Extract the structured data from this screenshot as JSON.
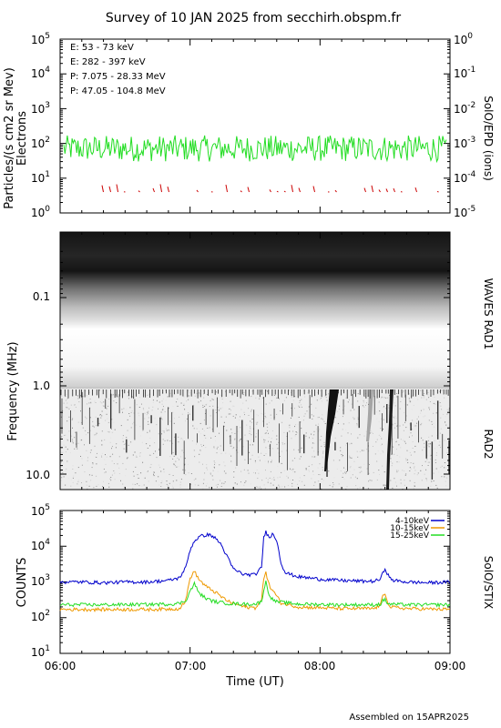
{
  "title": "Survey of 10 JAN 2025 from secchirh.obspm.fr",
  "footer": "Assembled on 15APR2025",
  "colors": {
    "green": "#22dd22",
    "red": "#cc0000",
    "black": "#000000",
    "blue": "#0000cc",
    "orange": "#ee9900"
  },
  "chart_data": [
    {
      "type": "line",
      "panel": "particles",
      "ylabel": "Particles/(s cm2 sr Mev)",
      "ylabel2": "Electrons",
      "right_label": "SolO/EPD (ions)",
      "yscale": "log",
      "ylim": [
        1,
        100000
      ],
      "yticks": [
        "10",
        "10",
        "10",
        "10",
        "10",
        "10"
      ],
      "ytick_exp": [
        "0",
        "1",
        "2",
        "3",
        "4",
        "5"
      ],
      "y2lim": [
        1e-05,
        1
      ],
      "y2ticks": [
        "10",
        "10",
        "10",
        "10",
        "10",
        "10"
      ],
      "y2tick_exp": [
        "-5",
        "-4",
        "-3",
        "-2",
        "-1",
        "0"
      ],
      "xlim": [
        "06:00",
        "09:00"
      ],
      "legend_items": [
        {
          "label": "E: 53 - 73 keV",
          "color": "#22dd22"
        },
        {
          "label": "E: 282 - 397 keV",
          "color": "#cc0000"
        },
        {
          "label": "P: 7.075 - 28.33 MeV",
          "color": "#000000"
        },
        {
          "label": "P: 47.05 - 104.8 MeV",
          "color": "#0000cc"
        }
      ],
      "series": [
        {
          "name": "E: 53 - 73 keV",
          "color": "#22dd22",
          "typical": 70,
          "range": [
            30,
            170
          ]
        },
        {
          "name": "E: 282 - 397 keV",
          "color": "#cc0000",
          "typical": 5,
          "range": [
            4,
            7
          ],
          "sparse": true
        }
      ]
    },
    {
      "type": "heatmap",
      "panel": "radio",
      "ylabel": "Frequency (MHz)",
      "right_labels": [
        "WAVES RAD1",
        "RAD2"
      ],
      "yscale": "log",
      "yreversed": true,
      "ylim": [
        0.02,
        16
      ],
      "yticks": [
        "0.1",
        "1.0",
        "10.0"
      ],
      "xlim": [
        "06:00",
        "09:00"
      ],
      "features": [
        {
          "kind": "type III burst",
          "time": "08:05",
          "freq_range": [
            1.0,
            16
          ]
        },
        {
          "kind": "type III burst",
          "time": "08:30",
          "freq_range": [
            1.0,
            16
          ]
        }
      ]
    },
    {
      "type": "line",
      "panel": "stix",
      "ylabel": "COUNTS",
      "right_label": "SolO/STIX",
      "yscale": "log",
      "ylim": [
        10,
        100000
      ],
      "yticks": [
        "10",
        "10",
        "10",
        "10",
        "10"
      ],
      "ytick_exp": [
        "1",
        "2",
        "3",
        "4",
        "5"
      ],
      "xlabel": "Time (UT)",
      "xticks": [
        "06:00",
        "07:00",
        "08:00",
        "09:00"
      ],
      "xlim_minutes": [
        0,
        180
      ],
      "legend_items": [
        {
          "label": "4-10keV",
          "color": "#0000cc"
        },
        {
          "label": "10-15keV",
          "color": "#ee9900"
        },
        {
          "label": "15-25keV",
          "color": "#22dd22"
        }
      ],
      "series": [
        {
          "name": "4-10keV",
          "color": "#0000cc",
          "x": [
            0,
            10,
            20,
            30,
            40,
            50,
            55,
            58,
            60,
            62,
            64,
            66,
            68,
            70,
            72,
            74,
            76,
            78,
            80,
            85,
            90,
            93,
            94,
            95,
            96,
            97,
            98,
            100,
            102,
            104,
            110,
            120,
            130,
            140,
            145,
            148,
            149,
            150,
            151,
            152,
            154,
            160,
            170,
            180
          ],
          "y": [
            1000,
            1000,
            950,
            1000,
            1000,
            1100,
            1300,
            2500,
            8000,
            14000,
            18000,
            20000,
            21000,
            20000,
            16000,
            12000,
            7000,
            4000,
            2300,
            1600,
            1600,
            2500,
            18000,
            25000,
            20000,
            19000,
            22000,
            15000,
            3500,
            1800,
            1400,
            1200,
            1100,
            1050,
            1050,
            1200,
            1800,
            2400,
            1800,
            1300,
            1100,
            1000,
            950,
            1000
          ]
        },
        {
          "name": "10-15keV",
          "color": "#ee9900",
          "x": [
            0,
            20,
            40,
            50,
            55,
            58,
            60,
            62,
            64,
            66,
            68,
            70,
            72,
            74,
            78,
            85,
            90,
            93,
            94,
            95,
            96,
            97,
            98,
            100,
            102,
            110,
            130,
            145,
            148,
            149,
            150,
            151,
            152,
            160,
            180
          ],
          "y": [
            170,
            170,
            170,
            175,
            180,
            300,
            1300,
            2000,
            1200,
            900,
            700,
            600,
            500,
            400,
            280,
            200,
            190,
            300,
            1300,
            2000,
            1000,
            700,
            600,
            400,
            260,
            200,
            180,
            180,
            230,
            420,
            500,
            320,
            200,
            180,
            170
          ]
        },
        {
          "name": "15-25keV",
          "color": "#22dd22",
          "x": [
            0,
            20,
            40,
            50,
            55,
            58,
            60,
            62,
            64,
            66,
            68,
            70,
            72,
            78,
            85,
            90,
            93,
            94,
            95,
            96,
            97,
            98,
            100,
            110,
            130,
            145,
            148,
            149,
            150,
            151,
            152,
            160,
            180
          ],
          "y": [
            230,
            230,
            235,
            240,
            250,
            300,
            550,
            900,
            500,
            400,
            330,
            300,
            280,
            250,
            240,
            240,
            280,
            600,
            1000,
            550,
            400,
            330,
            280,
            240,
            230,
            230,
            240,
            300,
            320,
            260,
            240,
            230,
            230
          ]
        }
      ]
    }
  ]
}
